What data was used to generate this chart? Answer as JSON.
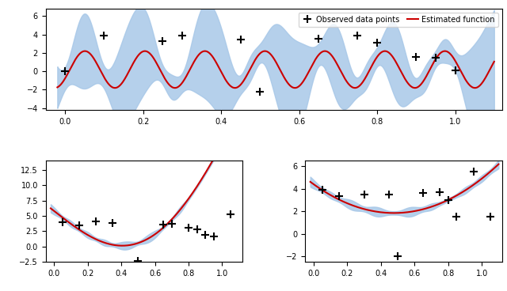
{
  "top_plot": {
    "x_obs": [
      0.0,
      0.1,
      0.25,
      0.3,
      0.45,
      0.5,
      0.65,
      0.75,
      0.8,
      0.9,
      0.95,
      1.0
    ],
    "y_obs": [
      0.0,
      3.9,
      3.3,
      3.85,
      3.45,
      -2.25,
      3.55,
      3.85,
      3.1,
      1.55,
      1.45,
      0.1
    ],
    "ylim": [
      -4.2,
      6.8
    ],
    "xlim": [
      -0.05,
      1.12
    ]
  },
  "bottom_left": {
    "x_obs": [
      0.05,
      0.15,
      0.25,
      0.35,
      0.5,
      0.65,
      0.7,
      0.8,
      0.85,
      0.9,
      0.95,
      1.05
    ],
    "y_obs": [
      4.0,
      3.5,
      4.1,
      3.8,
      -2.3,
      3.6,
      3.75,
      3.1,
      2.8,
      1.9,
      1.7,
      5.3
    ],
    "ylim": [
      -2.5,
      14.0
    ],
    "xlim": [
      -0.05,
      1.12
    ]
  },
  "bottom_right": {
    "x_obs": [
      0.05,
      0.15,
      0.3,
      0.45,
      0.5,
      0.65,
      0.75,
      0.8,
      0.85,
      0.95,
      1.05
    ],
    "y_obs": [
      3.9,
      3.35,
      3.5,
      3.5,
      -2.0,
      3.6,
      3.7,
      3.0,
      1.5,
      5.5,
      1.5
    ],
    "ylim": [
      -2.5,
      6.5
    ],
    "xlim": [
      -0.05,
      1.12
    ]
  },
  "fill_color": "#a8c8e8",
  "line_color": "#cc0000",
  "obs_color": "black"
}
